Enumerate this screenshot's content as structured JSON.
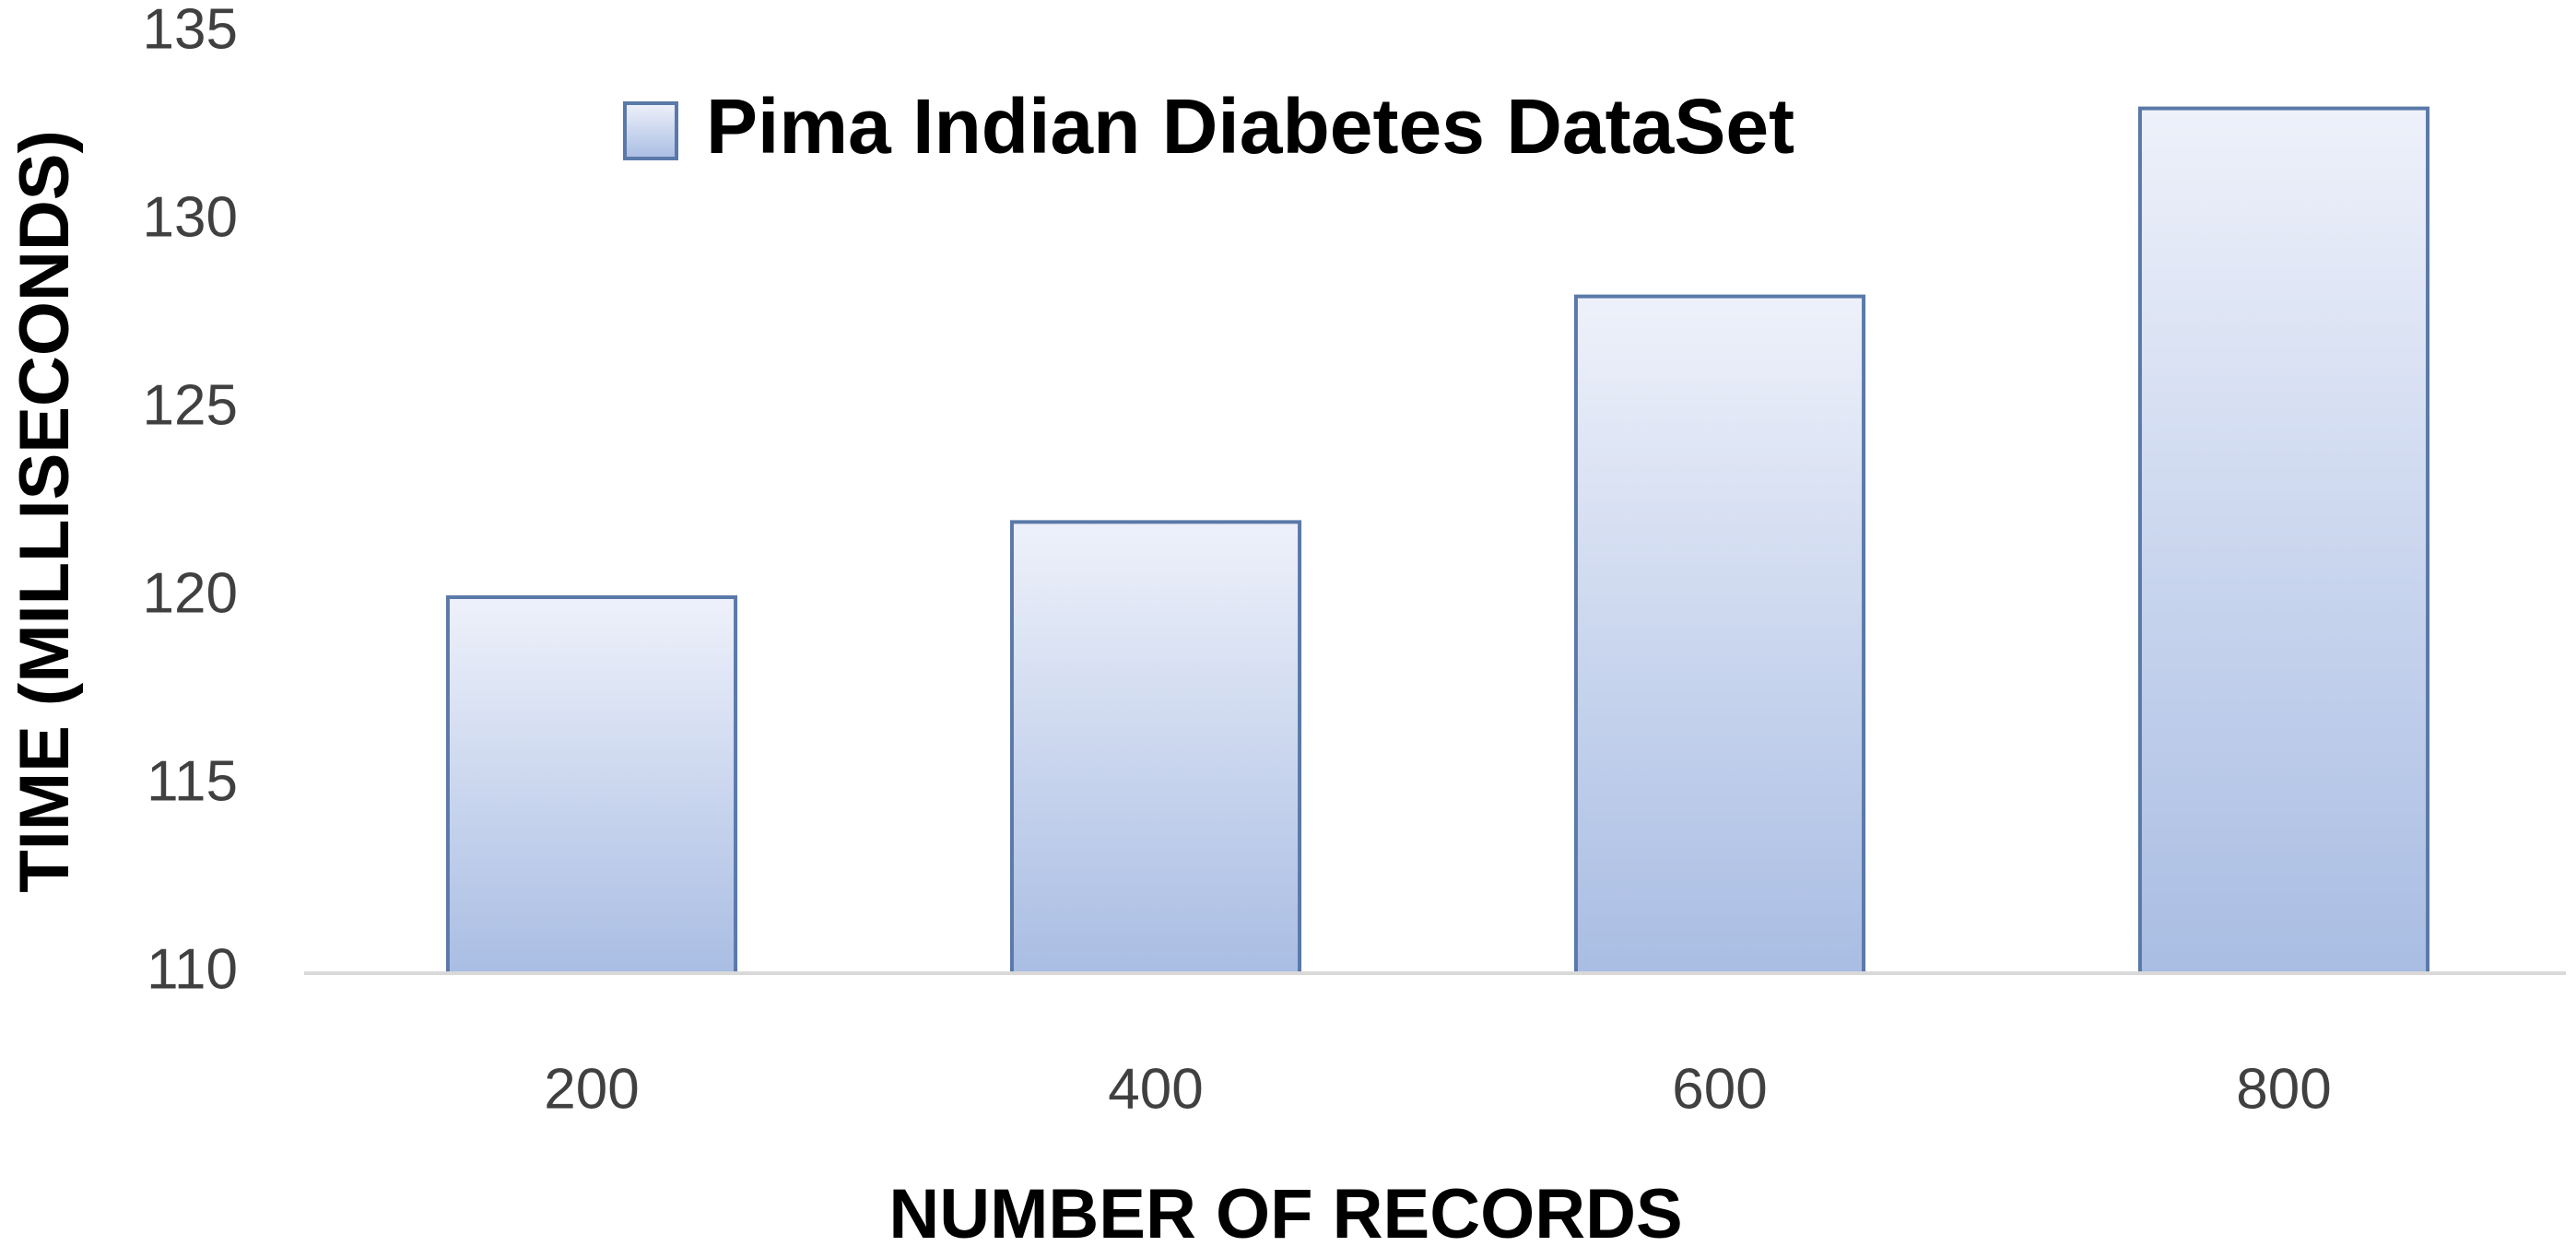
{
  "chart_data": {
    "type": "bar",
    "categories": [
      "200",
      "400",
      "600",
      "800"
    ],
    "series": [
      {
        "name": "Pima Indian Diabetes DataSet",
        "color": "#a9bde3",
        "values": [
          120,
          122,
          128,
          133
        ]
      }
    ],
    "xlabel": "NUMBER OF RECORDS",
    "ylabel": "TIME (MILLISECONDS)",
    "ylim": [
      110,
      135
    ],
    "yticks": [
      110,
      115,
      120,
      125,
      130,
      135
    ],
    "grid": false,
    "legend": "top"
  }
}
